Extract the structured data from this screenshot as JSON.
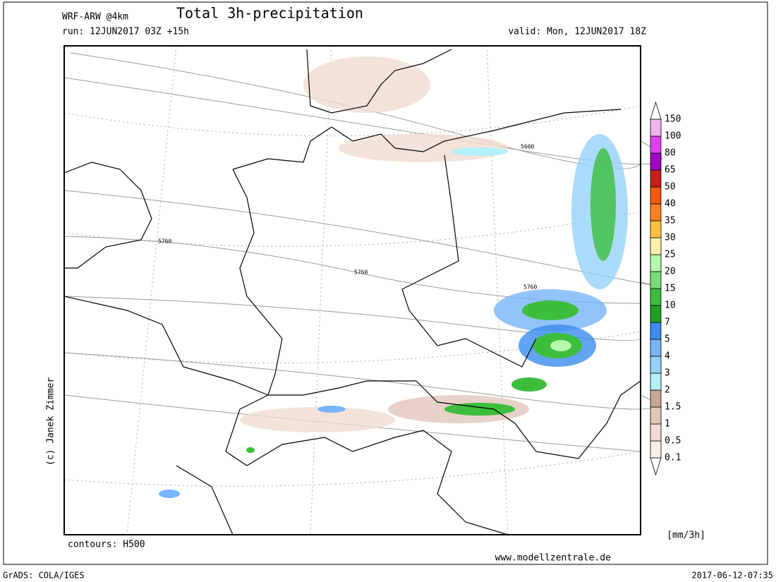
{
  "header": {
    "model": "WRF-ARW @4km",
    "title": "Total 3h-precipitation",
    "run": "run: 12JUN2017 03Z +15h",
    "valid": "valid: Mon, 12JUN2017 18Z"
  },
  "map": {
    "credit": "(c) Janek Zimmer",
    "contours_note": "contours: H500",
    "website": "www.modellzentrale.de",
    "contour_labels": [
      "5600",
      "5760",
      "5760",
      "5760"
    ]
  },
  "colorbar": {
    "unit": "[mm/3h]",
    "levels": [
      0.1,
      0.5,
      1,
      1.5,
      2,
      3,
      4,
      5,
      7,
      10,
      15,
      20,
      25,
      30,
      35,
      40,
      50,
      65,
      80,
      100,
      150
    ],
    "colors": [
      "#ffffff",
      "#fbeee6",
      "#f0dcd2",
      "#e2c6bb",
      "#c8a596",
      "#b4f0fa",
      "#96d2fa",
      "#78b4fa",
      "#3c8cf0",
      "#1ea01e",
      "#3cbe3c",
      "#78dc78",
      "#b4faaa",
      "#fff0aa",
      "#ffc040",
      "#ff8020",
      "#f05a0a",
      "#c81e1e",
      "#a000c8",
      "#e040f0",
      "#f0b4f0",
      "#ffffff"
    ]
  },
  "footer": {
    "software": "GrADS: COLA/IGES",
    "timestamp": "2017-06-12-07:35"
  }
}
